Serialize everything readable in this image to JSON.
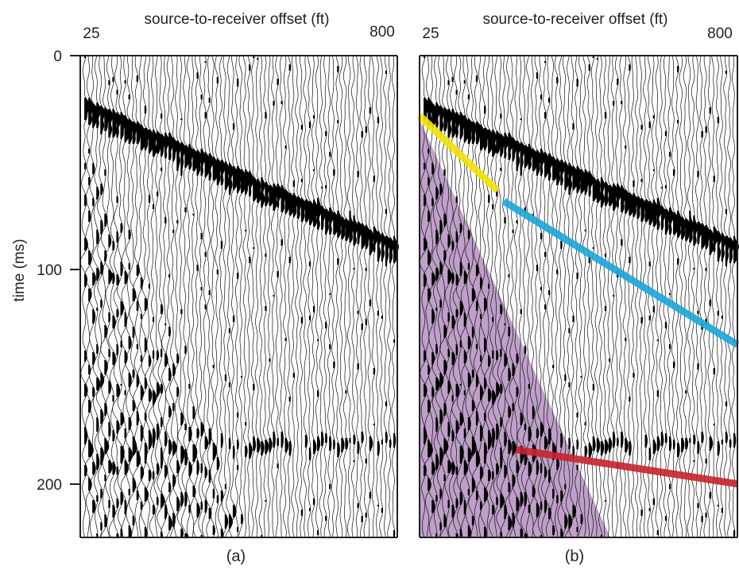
{
  "chart_data": [
    {
      "type": "wiggle-seismogram",
      "panel_label": "(a)",
      "xlabel": "source-to-receiver offset (ft)",
      "x_ticks": [
        "25",
        "800"
      ],
      "xlim": [
        25,
        800
      ],
      "ylabel": "time (ms)",
      "y_ticks": [
        "0",
        "100",
        "200"
      ],
      "ylim": [
        0,
        225
      ],
      "y_inverted": true,
      "overlays": []
    },
    {
      "type": "wiggle-seismogram",
      "panel_label": "(b)",
      "xlabel": "source-to-receiver offset (ft)",
      "x_ticks": [
        "25",
        "800"
      ],
      "xlim": [
        25,
        800
      ],
      "ylim": [
        0,
        225
      ],
      "y_inverted": true,
      "overlays": [
        {
          "kind": "line",
          "color": "#f2e200",
          "x": [
            25,
            215
          ],
          "y": [
            28,
            63
          ]
        },
        {
          "kind": "line",
          "color": "#1aa6d8",
          "x": [
            230,
            800
          ],
          "y": [
            68,
            135
          ]
        },
        {
          "kind": "line",
          "color": "#c8242c",
          "x": [
            260,
            800
          ],
          "y": [
            184,
            200
          ]
        },
        {
          "kind": "region",
          "color": "#b48fc0",
          "x": [
            25,
            25,
            25,
            490
          ],
          "y": [
            30,
            225,
            225,
            225
          ],
          "polygon": [
            [
              25,
              30
            ],
            [
              25,
              225
            ],
            [
              490,
              225
            ]
          ]
        }
      ]
    }
  ]
}
